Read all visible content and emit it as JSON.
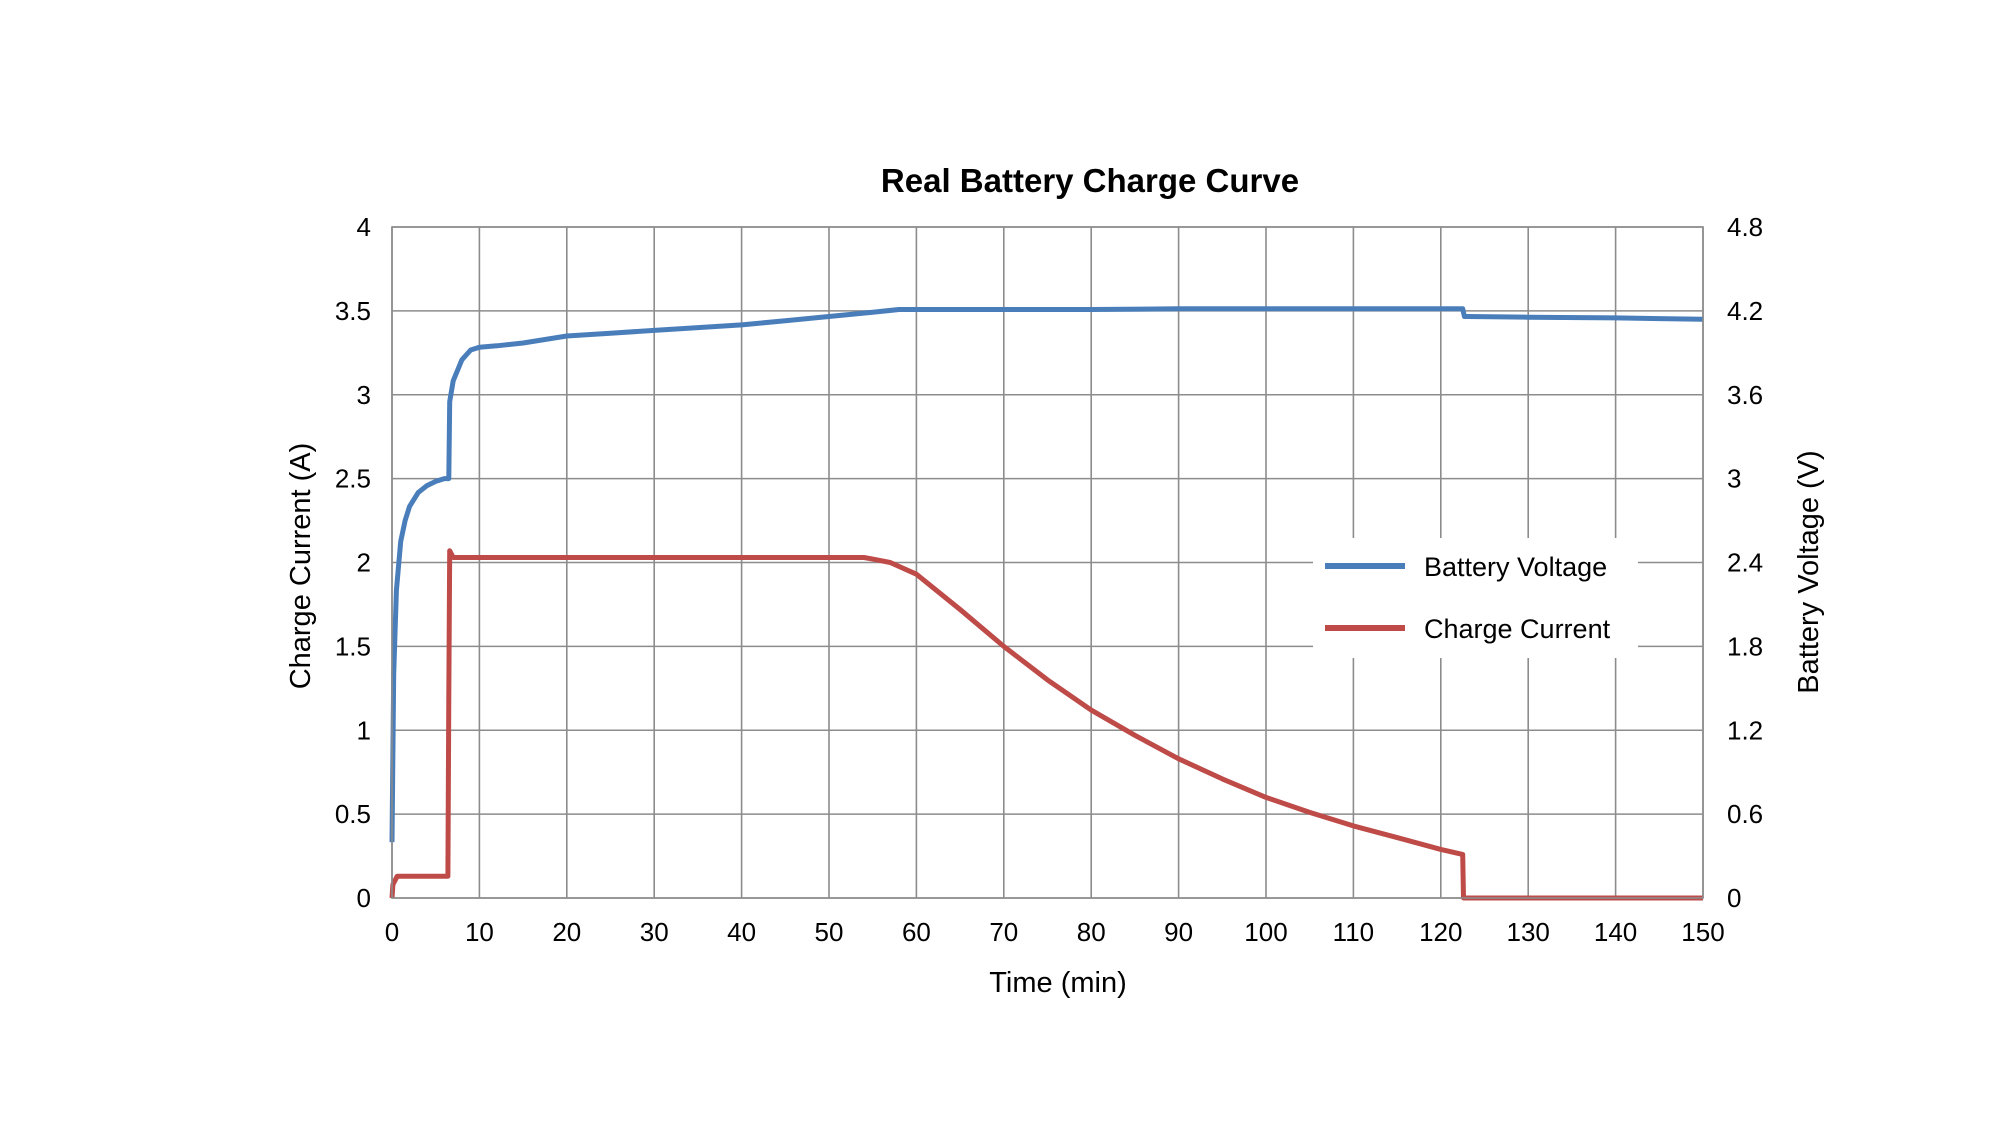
{
  "chart_data": {
    "type": "line",
    "title": "Real Battery Charge Curve",
    "xlabel": "Time (min)",
    "ylabel": "Charge Current (A)",
    "y2label": "Battery Voltage (V)",
    "xlim": [
      0,
      150
    ],
    "ylim": [
      0,
      4
    ],
    "y2lim": [
      0,
      4.8
    ],
    "x_ticks": [
      "0",
      "10",
      "20",
      "30",
      "40",
      "50",
      "60",
      "70",
      "80",
      "90",
      "100",
      "110",
      "120",
      "130",
      "140",
      "150"
    ],
    "y_ticks": [
      "0",
      "0.5",
      "1",
      "1.5",
      "2",
      "2.5",
      "3",
      "3.5",
      "4"
    ],
    "y2_ticks": [
      "0",
      "0.6",
      "1.2",
      "1.8",
      "2.4",
      "3",
      "3.6",
      "4.2",
      "4.8"
    ],
    "grid": true,
    "legend_position": "right",
    "series": [
      {
        "name": "Battery Voltage",
        "axis": "right",
        "color": "#4a7ebb",
        "x": [
          0,
          0.2,
          0.5,
          1,
          1.5,
          2,
          3,
          4,
          5,
          6,
          6.5,
          6.6,
          7,
          8,
          9,
          10,
          12,
          15,
          20,
          25,
          30,
          35,
          40,
          45,
          50,
          55,
          58,
          60,
          70,
          80,
          90,
          100,
          110,
          122.5,
          122.7,
          123,
          130,
          140,
          150
        ],
        "y": [
          0.4,
          1.6,
          2.2,
          2.55,
          2.7,
          2.8,
          2.9,
          2.95,
          2.98,
          3.0,
          3.0,
          3.55,
          3.7,
          3.85,
          3.92,
          3.94,
          3.95,
          3.97,
          4.02,
          4.04,
          4.06,
          4.08,
          4.1,
          4.13,
          4.16,
          4.19,
          4.21,
          4.21,
          4.21,
          4.21,
          4.215,
          4.215,
          4.215,
          4.215,
          4.16,
          4.16,
          4.155,
          4.15,
          4.14
        ]
      },
      {
        "name": "Charge Current",
        "axis": "left",
        "color": "#be4b48",
        "x": [
          0,
          0.1,
          0.6,
          1,
          3,
          6.4,
          6.5,
          6.6,
          7,
          10,
          20,
          30,
          40,
          50,
          54,
          55,
          57,
          60,
          65,
          70,
          75,
          80,
          85,
          90,
          95,
          100,
          105,
          110,
          115,
          120,
          122.5,
          122.6,
          123,
          130,
          140,
          150
        ],
        "y": [
          0,
          0.08,
          0.13,
          0.13,
          0.13,
          0.13,
          1.2,
          2.07,
          2.03,
          2.03,
          2.03,
          2.03,
          2.03,
          2.03,
          2.03,
          2.02,
          2.0,
          1.93,
          1.72,
          1.5,
          1.3,
          1.12,
          0.97,
          0.83,
          0.71,
          0.6,
          0.51,
          0.43,
          0.36,
          0.29,
          0.26,
          0.0,
          0.0,
          0.0,
          0.0,
          0.0
        ]
      }
    ]
  }
}
